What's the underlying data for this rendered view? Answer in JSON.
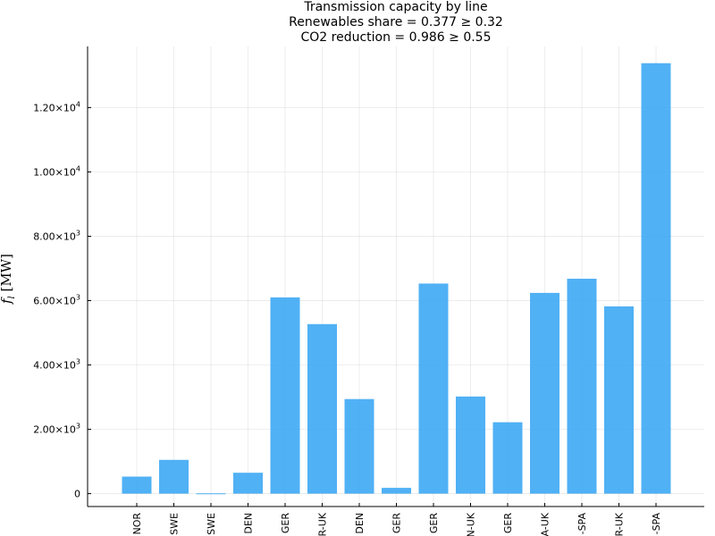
{
  "chart_data": {
    "type": "bar",
    "title": "Transmission capacity by line",
    "subtitle": [
      "Renewables share = 0.377 ≥ 0.32",
      "CO2 reduction = 0.986 ≥ 0.55"
    ],
    "ylabel": "f_l [MW]",
    "xlabel": "",
    "categories": [
      "NOR",
      "SWE",
      "SWE",
      "DEN",
      "GER",
      "R-UK",
      "DEN",
      "GER",
      "GER",
      "N-UK",
      "GER",
      "A-UK",
      "-SPA",
      "R-UK",
      "-SPA"
    ],
    "values": [
      530,
      1050,
      10,
      650,
      6100,
      5270,
      2940,
      180,
      6530,
      3020,
      2220,
      6240,
      6680,
      5820,
      13380
    ],
    "ylim": [
      -400,
      13900
    ],
    "yticks": [
      {
        "value": 0,
        "mant": "0",
        "exp": ""
      },
      {
        "value": 2000,
        "mant": "2.00×10",
        "exp": "3"
      },
      {
        "value": 4000,
        "mant": "4.00×10",
        "exp": "3"
      },
      {
        "value": 6000,
        "mant": "6.00×10",
        "exp": "3"
      },
      {
        "value": 8000,
        "mant": "8.00×10",
        "exp": "3"
      },
      {
        "value": 10000,
        "mant": "1.00×10",
        "exp": "4"
      },
      {
        "value": 12000,
        "mant": "1.20×10",
        "exp": "4"
      }
    ],
    "grid": true,
    "legend": "none",
    "bar_color": "#3da9f4"
  }
}
